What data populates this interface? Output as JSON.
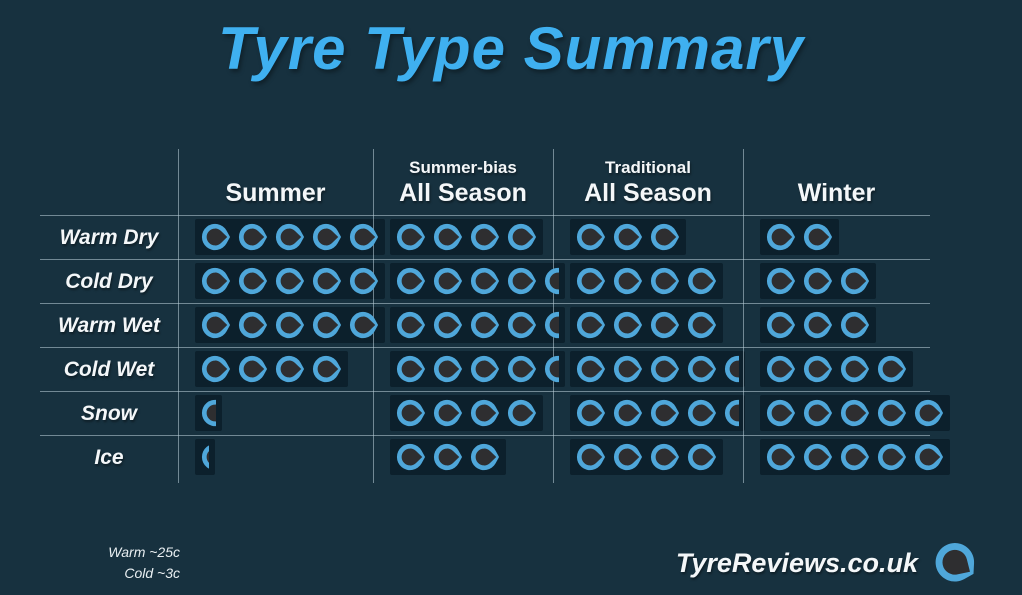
{
  "title": "Tyre Type Summary",
  "table": {
    "columns": [
      {
        "top": "",
        "label": "Summer"
      },
      {
        "top": "Summer-bias",
        "label": "All Season"
      },
      {
        "top": "Traditional",
        "label": "All Season"
      },
      {
        "top": "",
        "label": "Winter"
      }
    ],
    "rows": [
      {
        "label": "Warm Dry",
        "ratings": [
          5,
          4,
          3,
          2
        ]
      },
      {
        "label": "Cold Dry",
        "ratings": [
          5,
          4.5,
          4,
          3
        ]
      },
      {
        "label": "Warm Wet",
        "ratings": [
          5,
          4.5,
          4,
          3
        ]
      },
      {
        "label": "Cold Wet",
        "ratings": [
          4,
          4.5,
          4.5,
          4
        ]
      },
      {
        "label": "Snow",
        "ratings": [
          0.5,
          4,
          4.5,
          5
        ]
      },
      {
        "label": "Ice",
        "ratings": [
          0.25,
          3,
          4,
          5
        ]
      }
    ],
    "rating_max": 5,
    "rating_icon": "tyre-icon"
  },
  "footer": {
    "note1": "Warm ~25c",
    "note2": "Cold ~3c",
    "brand": "TyreReviews.co.uk",
    "logo_icon": "tyre-logo-icon"
  },
  "colors": {
    "background": "#17313f",
    "title": "#3fb0f0",
    "ring": "#4fa7da",
    "cell_background": "#0c202c",
    "tyre_center": "#2e2e30",
    "grid_line": "rgba(190,210,220,0.55)",
    "text": "#f4f7f9"
  },
  "chart_data": {
    "type": "table",
    "title": "Tyre Type Summary",
    "columns": [
      "Summer",
      "Summer-bias All Season",
      "Traditional All Season",
      "Winter"
    ],
    "rows": [
      "Warm Dry",
      "Cold Dry",
      "Warm Wet",
      "Cold Wet",
      "Snow",
      "Ice"
    ],
    "values": [
      [
        5,
        4,
        3,
        2
      ],
      [
        5,
        4.5,
        4,
        3
      ],
      [
        5,
        4.5,
        4,
        3
      ],
      [
        4,
        4.5,
        4.5,
        4
      ],
      [
        0.5,
        4,
        4.5,
        5
      ],
      [
        0.25,
        3,
        4,
        5
      ]
    ],
    "value_unit": "tyre rating out of 5",
    "annotations": [
      "Warm ~25c",
      "Cold ~3c",
      "TyreReviews.co.uk"
    ],
    "legend_position": "none",
    "grid": true
  }
}
